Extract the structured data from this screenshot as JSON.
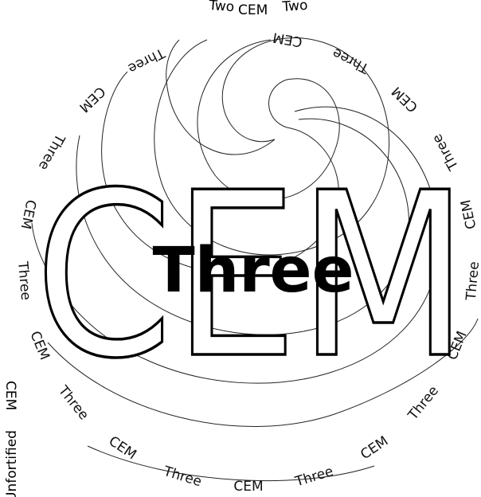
{
  "headline": "CEM",
  "center_word": "Three",
  "ring_words": [
    "CEM",
    "Three"
  ],
  "outer_words": [
    "Two",
    "CEM",
    "Two"
  ],
  "side_words": [
    "Unfortified",
    "CEM"
  ]
}
